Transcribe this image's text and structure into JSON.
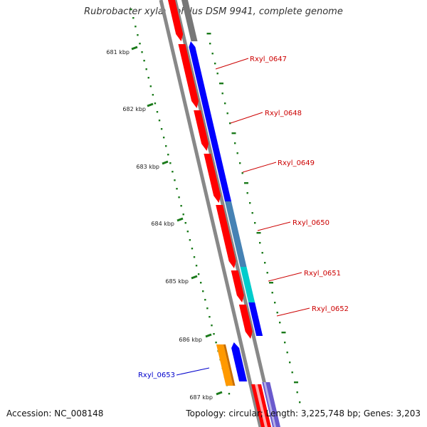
{
  "title": "Rubrobacter xylanophilus DSM 9941, complete genome",
  "footer": {
    "accession": "Accession: NC_008148",
    "topology": "Topology: circular; Length: 3,225,748 bp; Genes: 3,203"
  },
  "colors": {
    "forward_strand": "#ff0000",
    "reverse_strand": "#0000ff",
    "steel_blue": "#4682b4",
    "cyan": "#00cccc",
    "orange": "#ff9900",
    "slate_blue": "#6a5acd",
    "gray_gene": "#777777",
    "backbone": "#888888",
    "tick": "#1a7a1a",
    "label_red": "#cc0000",
    "label_blue": "#0000cc"
  },
  "ruler": {
    "ticks": [
      {
        "label": "681 kbp"
      },
      {
        "label": "682 kbp"
      },
      {
        "label": "683 kbp"
      },
      {
        "label": "684 kbp"
      },
      {
        "label": "685 kbp"
      },
      {
        "label": "686 kbp"
      },
      {
        "label": "687 kbp"
      }
    ]
  },
  "genes": [
    {
      "label": "Rxyl_0647",
      "strand": "reverse",
      "color_key": "reverse_strand"
    },
    {
      "label": "Rxyl_0648",
      "strand": "reverse",
      "color_key": "reverse_strand"
    },
    {
      "label": "Rxyl_0649",
      "strand": "reverse",
      "color_key": "reverse_strand"
    },
    {
      "label": "Rxyl_0650",
      "strand": "reverse",
      "color_key": "steel_blue"
    },
    {
      "label": "Rxyl_0651",
      "strand": "reverse",
      "color_key": "cyan"
    },
    {
      "label": "Rxyl_0652",
      "strand": "reverse",
      "color_key": "reverse_strand"
    },
    {
      "label": "Rxyl_0653",
      "strand": "forward",
      "color_key": "orange"
    }
  ]
}
